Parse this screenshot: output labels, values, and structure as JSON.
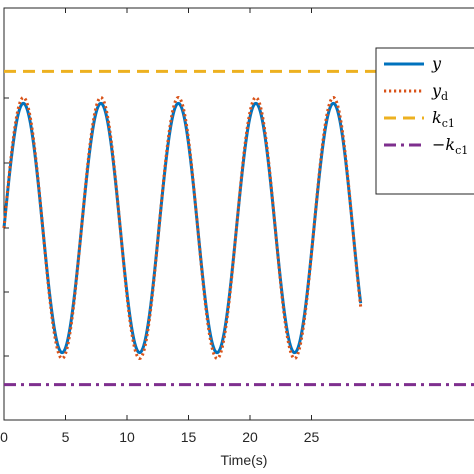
{
  "chart_data": {
    "type": "line",
    "xlabel": "Time(s)",
    "ylabel": "",
    "title": "",
    "xlim": [
      0,
      29
    ],
    "ylim": [
      -1.4,
      1.4
    ],
    "x_ticks": [
      0,
      5,
      10,
      15,
      20,
      25
    ],
    "x_tick_labels": [
      "0",
      "5",
      "10",
      "15",
      "20",
      "25"
    ],
    "grid": false,
    "legend_position": "top-right",
    "series": [
      {
        "name": "y",
        "style": "solid",
        "color": "#0072bd",
        "amplitude": 0.955,
        "period": 6.3,
        "x_start": 0,
        "x_end": 29
      },
      {
        "name": "y_d",
        "style": "dotted",
        "color": "#d95319",
        "amplitude": 1.0,
        "period": 6.3,
        "x_start": 0,
        "x_end": 29
      },
      {
        "name": "k_c1",
        "style": "dashed",
        "color": "#edb120",
        "constant": 1.2
      },
      {
        "name": "-k_c1",
        "style": "dash-dot",
        "color": "#7e2f8e",
        "constant": -1.2
      }
    ],
    "legend_labels": [
      {
        "main": "y",
        "sub": ""
      },
      {
        "main": "y",
        "sub": "d"
      },
      {
        "main": "k",
        "sub": "c1"
      },
      {
        "main": "−k",
        "sub": "c1"
      }
    ]
  }
}
